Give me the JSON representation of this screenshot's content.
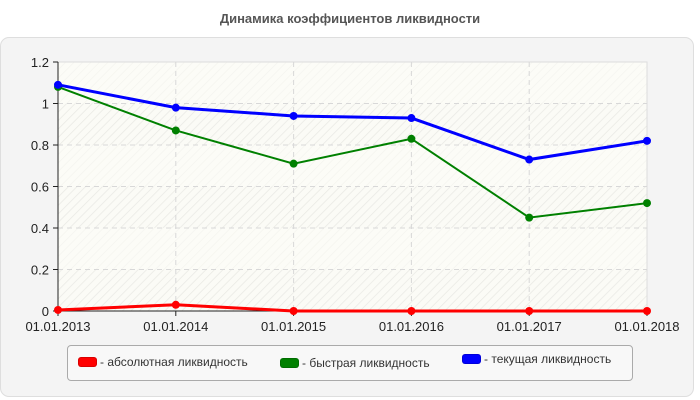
{
  "title": "Динамика коэффициентов ликвидности",
  "legend": {
    "items": [
      {
        "label": "- абсолютная ликвидность",
        "color": "#ff0000"
      },
      {
        "label": "- быстрая ликвидность",
        "color": "#008000"
      },
      {
        "label": "- текущая ликвидность",
        "color": "#0000ff"
      }
    ]
  },
  "chart_data": {
    "type": "line",
    "title": "Динамика коэффициентов ликвидности",
    "xlabel": "",
    "ylabel": "",
    "categories": [
      "01.01.2013",
      "01.01.2014",
      "01.01.2015",
      "01.01.2016",
      "01.01.2017",
      "01.01.2018"
    ],
    "yticks": [
      0,
      0.2,
      0.4,
      0.6,
      0.8,
      1,
      1.2
    ],
    "ytick_labels": [
      "0",
      "0.2",
      "0.4",
      "0.6",
      "0.8",
      "1",
      "1.2"
    ],
    "ylim": [
      0,
      1.2
    ],
    "grid": true,
    "legend_position": "bottom",
    "series": [
      {
        "name": "абсолютная ликвидность",
        "color": "#ff0000",
        "values": [
          0.005,
          0.03,
          0.0,
          0.0,
          0.0,
          0.0
        ]
      },
      {
        "name": "быстрая ликвидность",
        "color": "#008000",
        "values": [
          1.08,
          0.87,
          0.71,
          0.83,
          0.45,
          0.52
        ]
      },
      {
        "name": "текущая ликвидность",
        "color": "#0000ff",
        "values": [
          1.09,
          0.98,
          0.94,
          0.93,
          0.73,
          0.82
        ]
      }
    ]
  }
}
